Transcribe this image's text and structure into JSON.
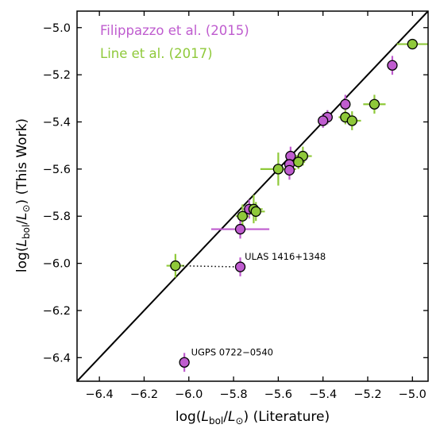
{
  "chart_data": {
    "type": "scatter",
    "xlabel_parts": {
      "pre": "log(",
      "L": "L",
      "sub": "bol",
      "slash": "/",
      "L2": "L",
      "sun": "⊙",
      "post": ") (Literature)"
    },
    "ylabel_parts": {
      "pre": "log(",
      "L": "L",
      "sub": "bol",
      "slash": "/",
      "L2": "L",
      "sun": "⊙",
      "post": ") (This Work)"
    },
    "xlim": [
      -6.5,
      -4.93
    ],
    "ylim": [
      -6.5,
      -4.93
    ],
    "xticks": [
      -6.4,
      -6.2,
      -6.0,
      -5.8,
      -5.6,
      -5.4,
      -5.2,
      -5.0
    ],
    "yticks": [
      -6.4,
      -6.2,
      -6.0,
      -5.8,
      -5.6,
      -5.4,
      -5.2,
      -5.0
    ],
    "xtick_labels": [
      "−6.4",
      "−6.2",
      "−6.0",
      "−5.8",
      "−5.6",
      "−5.4",
      "−5.2",
      "−5.0"
    ],
    "ytick_labels": [
      "−6.4",
      "−6.2",
      "−6.0",
      "−5.8",
      "−5.6",
      "−5.4",
      "−5.2",
      "−5.0"
    ],
    "grid": false,
    "legend_position": "top-left",
    "one_to_one_line": true,
    "series": [
      {
        "name": "Filippazzo et al. (2015)",
        "color": "#bf5ccf",
        "points": [
          {
            "x": -5.09,
            "y": -5.16,
            "xerr": 0.0,
            "yerr": 0.04
          },
          {
            "x": -5.3,
            "y": -5.325,
            "xerr": 0.01,
            "yerr": 0.04
          },
          {
            "x": -5.38,
            "y": -5.38,
            "xerr": 0.01,
            "yerr": 0.03
          },
          {
            "x": -5.4,
            "y": -5.395,
            "xerr": 0.02,
            "yerr": 0.03
          },
          {
            "x": -5.545,
            "y": -5.545,
            "xerr": 0.01,
            "yerr": 0.04
          },
          {
            "x": -5.55,
            "y": -5.58,
            "xerr": 0.01,
            "yerr": 0.04
          },
          {
            "x": -5.55,
            "y": -5.605,
            "xerr": 0.01,
            "yerr": 0.04
          },
          {
            "x": -5.73,
            "y": -5.77,
            "xerr": 0.03,
            "yerr": 0.04
          },
          {
            "x": -5.77,
            "y": -5.855,
            "xerr": 0.13,
            "yerr": 0.04
          },
          {
            "x": -5.77,
            "y": -6.015,
            "xerr": 0.0,
            "yerr": 0.04
          },
          {
            "x": -6.02,
            "y": -6.42,
            "xerr": 0.0,
            "yerr": 0.04
          }
        ]
      },
      {
        "name": "Line et al. (2017)",
        "color": "#8fc93a",
        "points": [
          {
            "x": -5.0,
            "y": -5.07,
            "xerr": 0.07,
            "yerr": 0.02
          },
          {
            "x": -5.17,
            "y": -5.325,
            "xerr": 0.05,
            "yerr": 0.04
          },
          {
            "x": -5.3,
            "y": -5.38,
            "xerr": 0.03,
            "yerr": 0.03
          },
          {
            "x": -5.27,
            "y": -5.395,
            "xerr": 0.04,
            "yerr": 0.04
          },
          {
            "x": -5.49,
            "y": -5.545,
            "xerr": 0.04,
            "yerr": 0.04
          },
          {
            "x": -5.51,
            "y": -5.57,
            "xerr": 0.03,
            "yerr": 0.03
          },
          {
            "x": -5.6,
            "y": -5.6,
            "xerr": 0.08,
            "yerr": 0.07
          },
          {
            "x": -5.71,
            "y": -5.77,
            "xerr": 0.04,
            "yerr": 0.06
          },
          {
            "x": -5.7,
            "y": -5.78,
            "xerr": 0.04,
            "yerr": 0.04
          },
          {
            "x": -5.76,
            "y": -5.8,
            "xerr": 0.03,
            "yerr": 0.05
          },
          {
            "x": -6.06,
            "y": -6.01,
            "xerr": 0.04,
            "yerr": 0.05
          }
        ]
      }
    ],
    "connectors": [
      {
        "x1": -6.06,
        "y1": -6.01,
        "x2": -5.77,
        "y2": -6.015
      },
      {
        "x1": -5.3,
        "y1": -5.325,
        "x2": -5.27,
        "y2": -5.325
      }
    ],
    "annotations": [
      {
        "text": "ULAS 1416+1348",
        "x": -5.75,
        "y": -5.985
      },
      {
        "text": "UGPS 0722−0540",
        "x": -5.99,
        "y": -6.39
      }
    ]
  }
}
